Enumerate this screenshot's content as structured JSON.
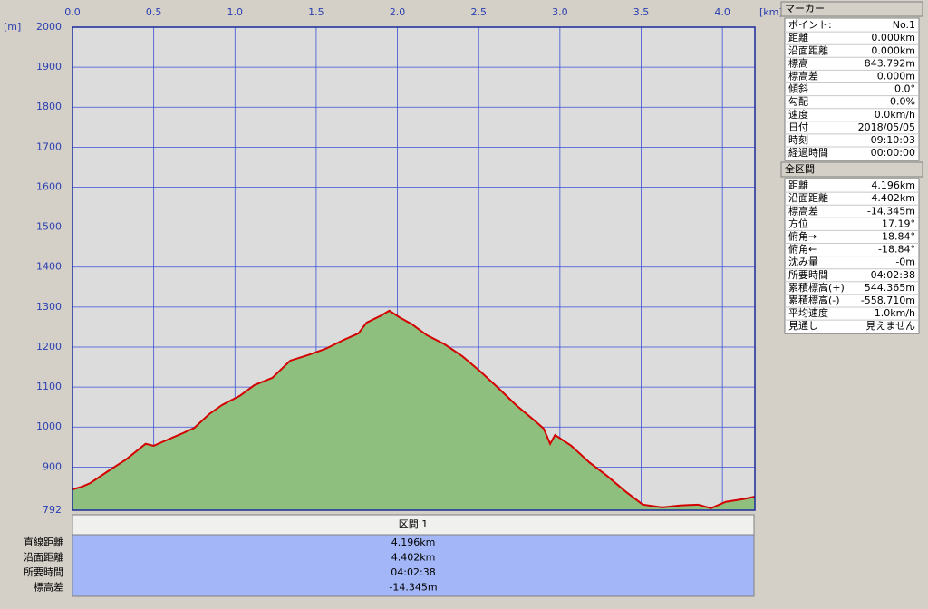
{
  "chart_data": {
    "type": "area",
    "y_unit": "[m]",
    "x_unit": "[km]",
    "x": [
      0,
      0.06,
      0.11,
      0.22,
      0.33,
      0.45,
      0.5,
      0.56,
      0.67,
      0.75,
      0.84,
      0.92,
      1.03,
      1.12,
      1.23,
      1.34,
      1.45,
      1.56,
      1.67,
      1.76,
      1.81,
      1.9,
      1.95,
      2.01,
      2.09,
      2.18,
      2.29,
      2.4,
      2.51,
      2.62,
      2.73,
      2.85,
      2.9,
      2.94,
      2.97,
      3.07,
      3.18,
      3.29,
      3.4,
      3.51,
      3.63,
      3.74,
      3.85,
      3.93,
      4.02,
      4.13,
      4.2
    ],
    "values": [
      844,
      851,
      860,
      890,
      919,
      958,
      953,
      964,
      983,
      998,
      1032,
      1055,
      1078,
      1105,
      1123,
      1166,
      1180,
      1196,
      1218,
      1234,
      1261,
      1279,
      1291,
      1275,
      1257,
      1230,
      1207,
      1177,
      1139,
      1098,
      1055,
      1014,
      996,
      958,
      980,
      953,
      912,
      878,
      840,
      806,
      799,
      804,
      806,
      797,
      813,
      820,
      826
    ],
    "line_color": "#d40000",
    "fill_color": "#8fbf7f",
    "xlim": [
      0,
      4.2
    ],
    "ylim": [
      792,
      2000
    ],
    "xticks": [
      {
        "value": 0,
        "label": "0.0"
      },
      0.5,
      {
        "value": 1,
        "label": "1.0"
      },
      1.5,
      {
        "value": 2,
        "label": "2.0"
      },
      2.5,
      {
        "value": 3,
        "label": "3.0"
      },
      3.5,
      {
        "value": 4,
        "label": "4.0"
      }
    ],
    "yticks": [
      792,
      900,
      1000,
      1100,
      1200,
      1300,
      1400,
      1500,
      1600,
      1700,
      1800,
      1900,
      2000
    ],
    "grid": true
  },
  "marker_panel": {
    "title": "マーカー",
    "rows": [
      [
        "ポイント:",
        "No.1"
      ],
      [
        "距離",
        "0.000km"
      ],
      [
        "沿面距離",
        "0.000km"
      ],
      [
        "標高",
        "843.792m"
      ],
      [
        "標高差",
        "0.000m"
      ],
      [
        "傾斜",
        "0.0°"
      ],
      [
        "勾配",
        "0.0%"
      ],
      [
        "速度",
        "0.0km/h"
      ],
      [
        "日付",
        "2018/05/05"
      ],
      [
        "時刻",
        "09:10:03"
      ],
      [
        "経過時間",
        "00:00:00"
      ]
    ]
  },
  "total_panel": {
    "title": "全区間",
    "rows": [
      [
        "距離",
        "4.196km"
      ],
      [
        "沿面距離",
        "4.402km"
      ],
      [
        "標高差",
        "-14.345m"
      ],
      [
        "方位",
        "17.19°"
      ],
      [
        "俯角→",
        "18.84°"
      ],
      [
        "俯角←",
        "-18.84°"
      ],
      [
        "沈み量",
        "-0m"
      ],
      [
        "所要時間",
        "04:02:38"
      ],
      [
        "累積標高(+)",
        "544.365m"
      ],
      [
        "累積標高(-)",
        "-558.710m"
      ],
      [
        "平均速度",
        "1.0km/h"
      ],
      [
        "見通し",
        "見えません"
      ]
    ]
  },
  "section_table": {
    "header": "区間 1",
    "labels": [
      "直線距離",
      "沿面距離",
      "所要時間",
      "標高差"
    ],
    "values": [
      "4.196km",
      "4.402km",
      "04:02:38",
      "-14.345m"
    ]
  }
}
